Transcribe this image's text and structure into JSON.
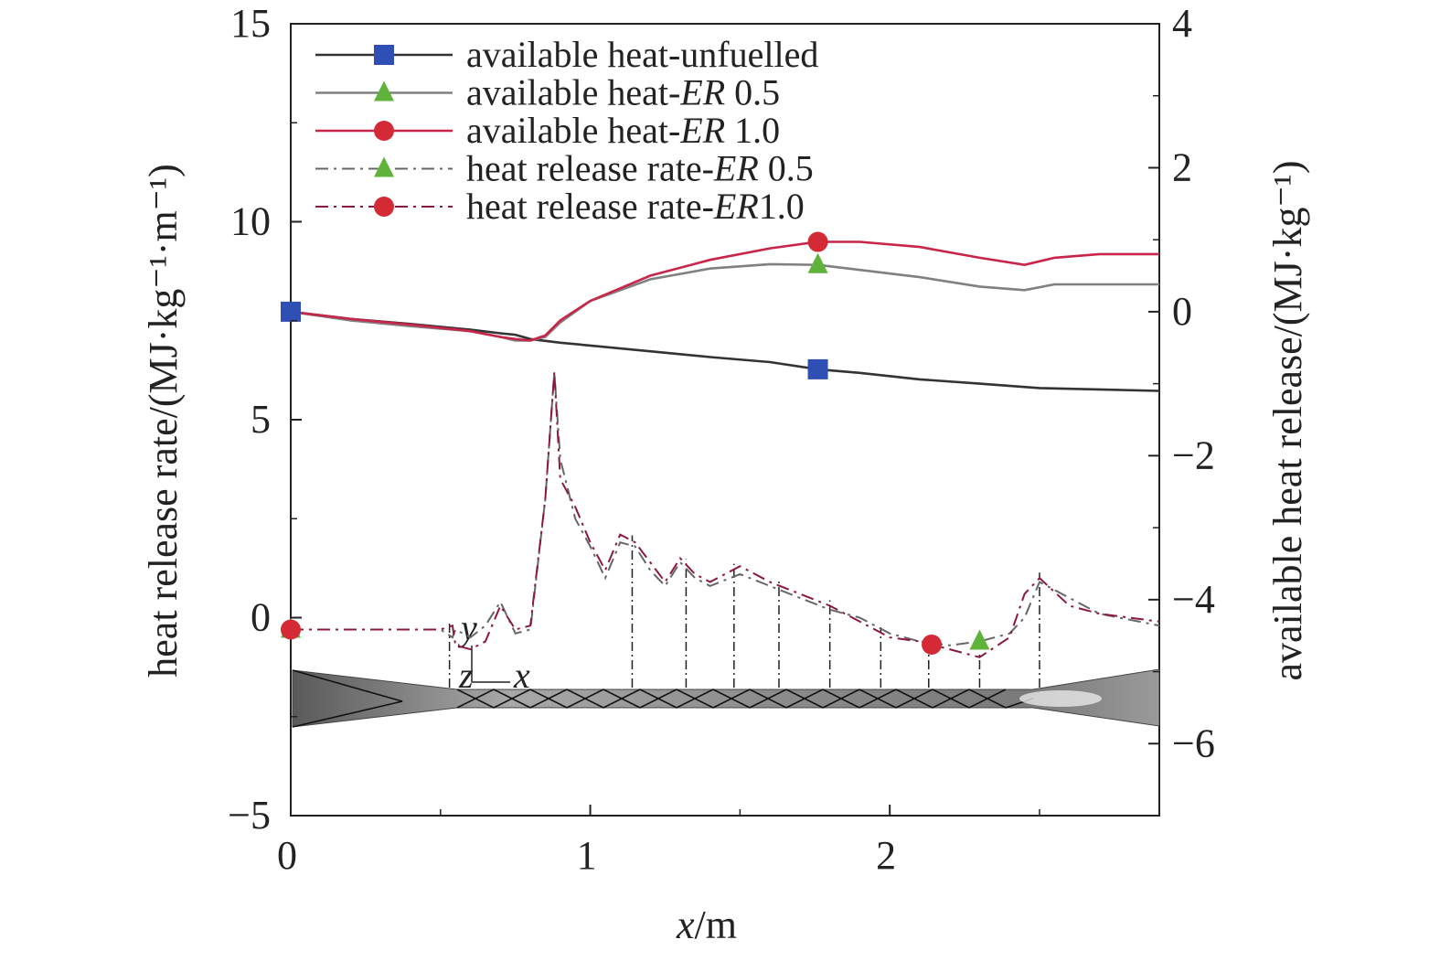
{
  "chart_data": {
    "type": "line",
    "x_axis": {
      "label_var": "x",
      "label_unit": "/m",
      "range": [
        0,
        2.9
      ],
      "ticks": [
        0,
        1,
        2
      ],
      "tick_labels": [
        "0",
        "1",
        "2"
      ]
    },
    "y_left": {
      "label": "heat release rate/(MJ·kg⁻¹·m⁻¹)",
      "range": [
        -5,
        15
      ],
      "ticks": [
        -5,
        0,
        5,
        10,
        15
      ],
      "tick_labels": [
        "−5",
        "0",
        "5",
        "10",
        "15"
      ]
    },
    "y_right": {
      "label": "available heat release/(MJ·kg⁻¹)",
      "range": [
        -7,
        4
      ],
      "ticks": [
        -6,
        -4,
        -2,
        0,
        2,
        4
      ],
      "tick_labels": [
        "−6",
        "−4",
        "−2",
        "0",
        "2",
        "4"
      ]
    },
    "legend_position": "top-left",
    "series": [
      {
        "name": "available heat-unfuelled",
        "name_prefix": "available heat-unfuelled",
        "name_italic": "",
        "name_suffix": "",
        "axis": "right",
        "color": "#333333",
        "marker": "square",
        "marker_color": "#2f4fb5",
        "dash": "solid",
        "x": [
          0,
          0.2,
          0.4,
          0.6,
          0.7,
          0.75,
          0.8,
          0.9,
          1.0,
          1.2,
          1.4,
          1.6,
          1.76,
          1.9,
          2.1,
          2.3,
          2.5,
          2.7,
          2.9
        ],
        "values": [
          0,
          -0.1,
          -0.17,
          -0.25,
          -0.3,
          -0.32,
          -0.38,
          -0.43,
          -0.47,
          -0.55,
          -0.63,
          -0.7,
          -0.8,
          -0.85,
          -0.94,
          -1.0,
          -1.06,
          -1.08,
          -1.1
        ],
        "marker_x": [
          0,
          1.76
        ]
      },
      {
        "name": "available heat-ER 0.5",
        "name_prefix": "available heat-",
        "name_italic": "ER",
        "name_suffix": " 0.5",
        "axis": "right",
        "color": "#808080",
        "marker": "triangle",
        "marker_color": "#5fb33a",
        "dash": "solid",
        "x": [
          0,
          0.2,
          0.4,
          0.6,
          0.7,
          0.75,
          0.8,
          0.85,
          0.9,
          1.0,
          1.2,
          1.4,
          1.6,
          1.76,
          1.9,
          2.1,
          2.3,
          2.45,
          2.55,
          2.7,
          2.9
        ],
        "values": [
          0,
          -0.12,
          -0.2,
          -0.27,
          -0.35,
          -0.4,
          -0.4,
          -0.35,
          -0.15,
          0.15,
          0.45,
          0.6,
          0.66,
          0.65,
          0.58,
          0.48,
          0.35,
          0.3,
          0.38,
          0.38,
          0.38
        ],
        "marker_x": [
          1.76
        ]
      },
      {
        "name": "available heat-ER 1.0",
        "name_prefix": "available heat-",
        "name_italic": "ER",
        "name_suffix": " 1.0",
        "axis": "right",
        "color": "#c8254a",
        "marker": "circle",
        "marker_color": "#d42a35",
        "dash": "solid",
        "x": [
          0,
          0.2,
          0.4,
          0.6,
          0.7,
          0.75,
          0.8,
          0.85,
          0.9,
          1.0,
          1.2,
          1.4,
          1.6,
          1.76,
          1.9,
          2.1,
          2.3,
          2.45,
          2.55,
          2.7,
          2.9
        ],
        "values": [
          0,
          -0.1,
          -0.18,
          -0.27,
          -0.35,
          -0.38,
          -0.4,
          -0.33,
          -0.12,
          0.15,
          0.5,
          0.72,
          0.88,
          0.97,
          0.97,
          0.9,
          0.75,
          0.65,
          0.75,
          0.8,
          0.8
        ],
        "marker_x": [
          1.76
        ]
      },
      {
        "name": "heat release rate-ER 0.5",
        "name_prefix": "heat release rate-",
        "name_italic": "ER",
        "name_suffix": " 0.5",
        "axis": "left",
        "color": "#666666",
        "marker": "triangle",
        "marker_color": "#5fb33a",
        "dash": "dashdot",
        "x": [
          0,
          0.5,
          0.54,
          0.55,
          0.6,
          0.65,
          0.7,
          0.75,
          0.8,
          0.85,
          0.88,
          0.9,
          0.95,
          1.0,
          1.05,
          1.1,
          1.15,
          1.2,
          1.25,
          1.3,
          1.35,
          1.4,
          1.5,
          1.6,
          1.7,
          1.8,
          1.9,
          2.0,
          2.1,
          2.2,
          2.3,
          2.4,
          2.45,
          2.5,
          2.6,
          2.7,
          2.9
        ],
        "values": [
          -0.3,
          -0.3,
          -0.5,
          -0.3,
          -0.5,
          -0.2,
          0.4,
          -0.4,
          -0.3,
          3.0,
          6.2,
          4.0,
          2.5,
          1.8,
          1.0,
          1.9,
          1.8,
          1.2,
          0.8,
          1.4,
          1.0,
          0.8,
          1.1,
          0.8,
          0.5,
          0.2,
          0.0,
          -0.4,
          -0.6,
          -0.7,
          -0.6,
          -0.4,
          0.0,
          0.9,
          0.5,
          0.1,
          -0.2
        ],
        "marker_x": [
          0,
          2.3
        ]
      },
      {
        "name": "heat release rate-ER1.0",
        "name_prefix": "heat release rate-",
        "name_italic": "ER",
        "name_suffix": "1.0",
        "axis": "left",
        "color": "#8b1a3a",
        "marker": "circle",
        "marker_color": "#d42a35",
        "dash": "dashdot",
        "x": [
          0,
          0.5,
          0.54,
          0.55,
          0.6,
          0.65,
          0.7,
          0.75,
          0.8,
          0.85,
          0.88,
          0.9,
          0.95,
          1.0,
          1.05,
          1.1,
          1.15,
          1.2,
          1.25,
          1.3,
          1.35,
          1.4,
          1.5,
          1.6,
          1.7,
          1.8,
          1.9,
          2.0,
          2.1,
          2.2,
          2.3,
          2.4,
          2.45,
          2.5,
          2.6,
          2.7,
          2.9
        ],
        "values": [
          -0.3,
          -0.3,
          -0.2,
          -0.7,
          -0.8,
          -0.6,
          0.3,
          -0.3,
          -0.2,
          3.0,
          6.2,
          3.5,
          2.8,
          1.9,
          1.2,
          2.1,
          1.9,
          1.4,
          0.9,
          1.5,
          1.1,
          0.9,
          1.3,
          0.9,
          0.6,
          0.3,
          -0.1,
          -0.5,
          -0.6,
          -0.8,
          -1.0,
          -0.5,
          0.6,
          1.0,
          0.3,
          0.1,
          -0.1
        ],
        "marker_x": [
          0,
          2.14
        ]
      }
    ],
    "inlet_labels": {
      "y": "y",
      "z": "z",
      "x": "x"
    }
  }
}
